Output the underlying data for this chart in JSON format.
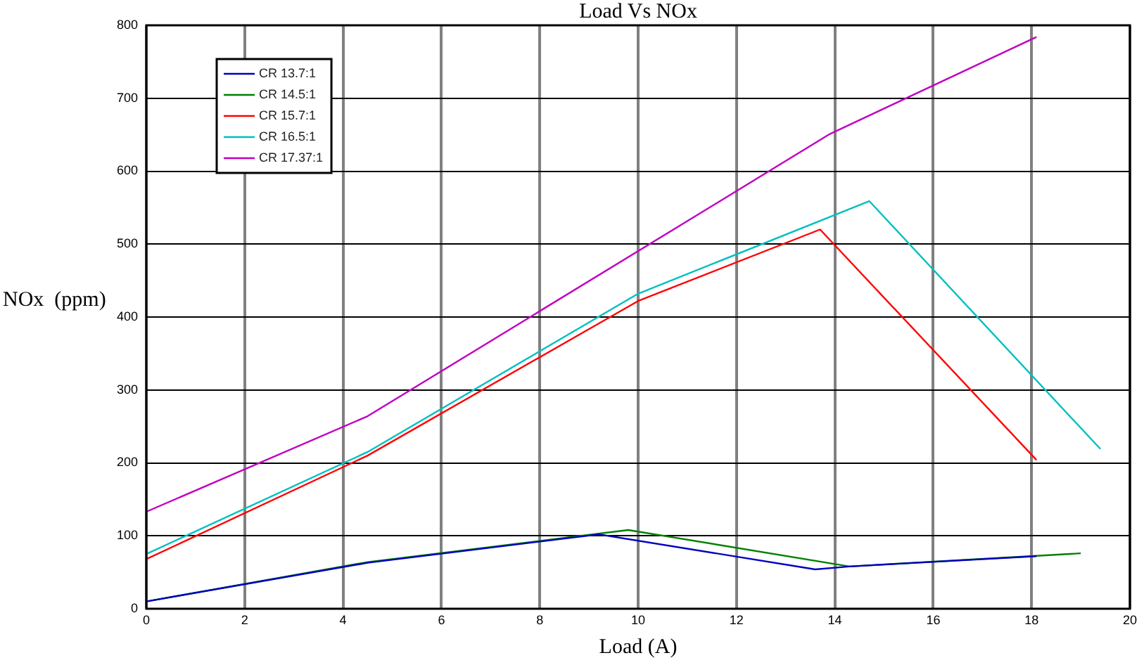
{
  "chart_data": {
    "type": "line",
    "title": "Load Vs NOx",
    "xlabel": "Load (A)",
    "ylabel": "NOx  (ppm)",
    "xlim": [
      0,
      20
    ],
    "xticks": [
      0,
      2,
      4,
      6,
      8,
      10,
      12,
      14,
      16,
      18,
      20
    ],
    "ylim": [
      0,
      800
    ],
    "yticks": [
      0,
      100,
      200,
      300,
      400,
      500,
      600,
      700,
      800
    ],
    "grid": true,
    "legend": "top left",
    "marker": "none",
    "line_style": "solid",
    "series": [
      {
        "name": "CR 13.7:1",
        "color": "#0000c0",
        "x": [
          0,
          4.5,
          9.2,
          13.6,
          14.3,
          18.1
        ],
        "values": [
          10,
          63,
          102,
          54,
          58,
          72
        ]
      },
      {
        "name": "CR 14.5:1",
        "color": "#008000",
        "x": [
          0,
          4.5,
          9.8,
          14.3,
          19.0
        ],
        "values": [
          10,
          64,
          108,
          58,
          76
        ]
      },
      {
        "name": "CR 15.7:1",
        "color": "#ff0000",
        "x": [
          0,
          4.5,
          10,
          13.7,
          18.1
        ],
        "values": [
          68,
          210,
          422,
          520,
          204
        ]
      },
      {
        "name": "CR 16.5:1",
        "color": "#00c0c0",
        "x": [
          0,
          4.5,
          10,
          14.7,
          19.4
        ],
        "values": [
          75,
          215,
          432,
          559,
          219
        ]
      },
      {
        "name": "CR 17.37:1",
        "color": "#c000c0",
        "x": [
          0,
          4.5,
          13.9,
          18.1
        ],
        "values": [
          133,
          264,
          651,
          784
        ]
      }
    ]
  }
}
